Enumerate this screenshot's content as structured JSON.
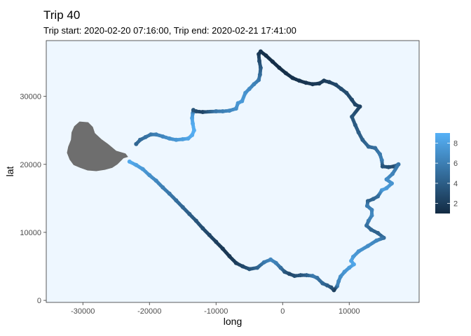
{
  "chart_data": {
    "type": "scatter",
    "title": "Trip 40",
    "subtitle": "Trip start: 2020-02-20 07:16:00, Trip end: 2020-02-21 17:41:00",
    "xlabel": "long",
    "ylabel": "lat",
    "xlim": [
      -35500,
      20500
    ],
    "ylim": [
      -300,
      38200
    ],
    "xticks": [
      -30000,
      -20000,
      -10000,
      0,
      10000
    ],
    "yticks": [
      0,
      10000,
      20000,
      30000
    ],
    "xtick_labels": [
      "-30000",
      "-20000",
      "-10000",
      "0",
      "10000"
    ],
    "ytick_labels": [
      "0",
      "10000",
      "20000",
      "30000"
    ],
    "grid": false,
    "panel_background": "#EEF7FF",
    "land_color": "#6e6e6e",
    "legend": {
      "placement": "right",
      "range": [
        1,
        9
      ],
      "ticks": [
        2,
        4,
        6,
        8
      ],
      "tick_labels": [
        "2",
        "4",
        "6",
        "8"
      ],
      "color_low": "#132B43",
      "color_high": "#56B1F7"
    },
    "island": [
      [
        -31300,
        25600
      ],
      [
        -30500,
        26300
      ],
      [
        -29200,
        26200
      ],
      [
        -28500,
        25500
      ],
      [
        -28200,
        24600
      ],
      [
        -27200,
        23700
      ],
      [
        -26200,
        23000
      ],
      [
        -25000,
        22000
      ],
      [
        -23600,
        21600
      ],
      [
        -23200,
        21100
      ],
      [
        -23900,
        20900
      ],
      [
        -24800,
        20000
      ],
      [
        -25600,
        19500
      ],
      [
        -26700,
        19200
      ],
      [
        -28000,
        19000
      ],
      [
        -29300,
        19100
      ],
      [
        -30400,
        19500
      ],
      [
        -31400,
        19900
      ],
      [
        -32000,
        20700
      ],
      [
        -32400,
        21700
      ],
      [
        -32200,
        22600
      ],
      [
        -31800,
        23600
      ],
      [
        -31700,
        24700
      ]
    ],
    "series": [
      {
        "points": [
          [
            -22000,
            23000,
            4.5
          ],
          [
            -21400,
            23600,
            4.8
          ],
          [
            -20600,
            24000,
            5.2
          ],
          [
            -19800,
            24400,
            5.5
          ],
          [
            -19000,
            24400,
            6.0
          ],
          [
            -18000,
            24100,
            6.4
          ],
          [
            -17000,
            23800,
            7.0
          ],
          [
            -16000,
            23600,
            7.4
          ],
          [
            -15000,
            23700,
            7.8
          ],
          [
            -14200,
            23800,
            8.2
          ],
          [
            -13600,
            24300,
            8.6
          ],
          [
            -13300,
            25000,
            8.8
          ],
          [
            -13500,
            26000,
            8.6
          ],
          [
            -13600,
            26800,
            8.2
          ],
          [
            -13500,
            27500,
            7.4
          ],
          [
            -13400,
            28000,
            3.5
          ],
          [
            -13000,
            27800,
            3.0
          ],
          [
            -12000,
            27700,
            2.5
          ],
          [
            -10000,
            27800,
            5.5
          ],
          [
            -9000,
            27800,
            6.0
          ],
          [
            -8000,
            27900,
            6.5
          ],
          [
            -7000,
            28200,
            7.0
          ],
          [
            -6700,
            29000,
            7.4
          ],
          [
            -6100,
            29300,
            7.6
          ],
          [
            -5600,
            30500,
            7.2
          ],
          [
            -5000,
            31100,
            6.8
          ],
          [
            -4300,
            31800,
            6.3
          ],
          [
            -3600,
            32400,
            5.8
          ],
          [
            -3400,
            33200,
            5.0
          ],
          [
            -3300,
            34200,
            4.0
          ],
          [
            -3500,
            35200,
            3.0
          ],
          [
            -3600,
            36200,
            2.0
          ],
          [
            -3300,
            36600,
            1.5
          ],
          [
            -2500,
            36000,
            1.3
          ],
          [
            -1500,
            35100,
            1.2
          ],
          [
            -500,
            34200,
            1.2
          ],
          [
            500,
            33400,
            1.3
          ],
          [
            1500,
            32700,
            1.4
          ],
          [
            2500,
            32300,
            1.5
          ],
          [
            3500,
            32000,
            1.6
          ],
          [
            4500,
            31800,
            1.8
          ],
          [
            5500,
            31900,
            1.9
          ],
          [
            6200,
            32300,
            2.0
          ],
          [
            7000,
            32100,
            2.2
          ],
          [
            8000,
            31700,
            2.6
          ],
          [
            8800,
            31100,
            2.9
          ],
          [
            9600,
            30500,
            3.0
          ],
          [
            10400,
            29500,
            2.8
          ],
          [
            10900,
            28800,
            2.6
          ],
          [
            11600,
            28500,
            2.4
          ],
          [
            10400,
            27000,
            3.5
          ],
          [
            10900,
            25800,
            3.8
          ],
          [
            11400,
            24700,
            4.0
          ],
          [
            12000,
            23600,
            4.2
          ],
          [
            12900,
            22600,
            4.6
          ],
          [
            13900,
            22400,
            5.0
          ],
          [
            14600,
            21500,
            5.6
          ],
          [
            14900,
            20600,
            6.0
          ],
          [
            15000,
            19700,
            3.5
          ],
          [
            15900,
            19600,
            3.2
          ],
          [
            16700,
            19700,
            3.0
          ],
          [
            17400,
            20000,
            5.5
          ],
          [
            16500,
            18600,
            6.2
          ],
          [
            15600,
            17800,
            6.8
          ],
          [
            16400,
            17200,
            7.2
          ],
          [
            15600,
            16500,
            7.6
          ],
          [
            14900,
            16200,
            7.8
          ],
          [
            14300,
            15300,
            5.0
          ],
          [
            13600,
            14900,
            4.6
          ],
          [
            12800,
            14600,
            4.2
          ],
          [
            12700,
            13900,
            5.8
          ],
          [
            13400,
            13300,
            6.2
          ],
          [
            13400,
            12500,
            6.6
          ],
          [
            12900,
            11700,
            6.0
          ],
          [
            12600,
            11000,
            5.2
          ],
          [
            13300,
            10400,
            4.6
          ],
          [
            14300,
            9900,
            4.2
          ],
          [
            15200,
            9200,
            5.0
          ],
          [
            14100,
            8800,
            6.5
          ],
          [
            12800,
            8000,
            6.8
          ],
          [
            11400,
            7200,
            7.2
          ],
          [
            10600,
            6400,
            7.6
          ],
          [
            10300,
            5800,
            8.2
          ],
          [
            10700,
            5300,
            8.4
          ],
          [
            10000,
            4800,
            7.8
          ],
          [
            9300,
            4200,
            7.4
          ],
          [
            8700,
            3500,
            7.0
          ],
          [
            8400,
            2800,
            6.6
          ],
          [
            8200,
            2100,
            6.2
          ],
          [
            7700,
            1500,
            2.2
          ],
          [
            7300,
            1900,
            3.2
          ],
          [
            6700,
            2200,
            4.0
          ],
          [
            6000,
            2500,
            4.6
          ],
          [
            5200,
            3300,
            5.2
          ],
          [
            4500,
            3600,
            5.8
          ],
          [
            3600,
            3700,
            4.4
          ],
          [
            2700,
            3700,
            3.6
          ],
          [
            1800,
            3600,
            3.2
          ],
          [
            1000,
            3900,
            2.8
          ],
          [
            300,
            4200,
            3.5
          ],
          [
            -300,
            4800,
            5.0
          ],
          [
            -1000,
            5500,
            6.0
          ],
          [
            -1800,
            6000,
            6.5
          ],
          [
            -2800,
            5600,
            5.8
          ],
          [
            -3800,
            4800,
            4.5
          ],
          [
            -5000,
            4600,
            3.5
          ],
          [
            -6000,
            5000,
            2.8
          ],
          [
            -7000,
            5500,
            2.2
          ],
          [
            -8000,
            6500,
            1.8
          ],
          [
            -9000,
            7600,
            1.8
          ],
          [
            -10000,
            8600,
            2.2
          ],
          [
            -11000,
            9600,
            2.6
          ],
          [
            -12000,
            10600,
            3.0
          ],
          [
            -13000,
            11700,
            3.5
          ],
          [
            -14000,
            12700,
            4.0
          ],
          [
            -15000,
            13700,
            4.5
          ],
          [
            -16000,
            14700,
            5.0
          ],
          [
            -17000,
            15700,
            5.5
          ],
          [
            -18000,
            16600,
            6.0
          ],
          [
            -19000,
            17600,
            6.5
          ],
          [
            -20000,
            18400,
            7.0
          ],
          [
            -21000,
            19300,
            7.5
          ],
          [
            -22000,
            19900,
            8.0
          ],
          [
            -23000,
            20400,
            8.5
          ]
        ]
      }
    ]
  }
}
